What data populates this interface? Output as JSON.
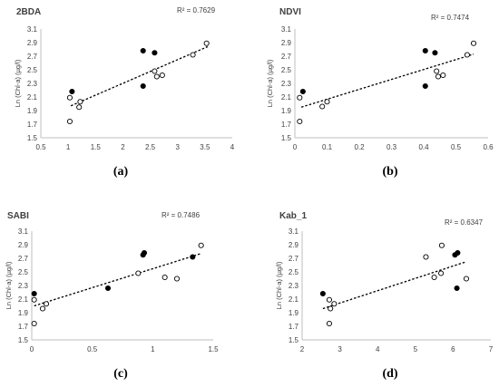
{
  "chart_data": [
    {
      "type": "scatter",
      "panel_label": "(a)",
      "title": "2BDA",
      "ylabel": "Ln (Chl-a) (µg/l)",
      "r2_label": "R² = 0.7629",
      "xlim": [
        0.5,
        4
      ],
      "ylim": [
        1.5,
        3.1
      ],
      "xticks": [
        0.5,
        1,
        1.5,
        2,
        2.5,
        3,
        3.5,
        4
      ],
      "xtick_labels": [
        "0.5",
        "1",
        "1.5",
        "2",
        "2.5",
        "3",
        "3.5",
        "4"
      ],
      "yticks": [
        1.5,
        1.7,
        1.9,
        2.1,
        2.3,
        2.5,
        2.7,
        2.9,
        3.1
      ],
      "ytick_labels": [
        "1.5",
        "1.7",
        "1.9",
        "2.1",
        "2.3",
        "2.5",
        "2.7",
        "2.9",
        "3.1"
      ],
      "trendline": {
        "x": [
          1.05,
          3.55
        ],
        "y": [
          1.97,
          2.84
        ]
      },
      "series": [
        {
          "marker": "filled",
          "points": [
            [
              1.07,
              2.18
            ],
            [
              2.37,
              2.78
            ],
            [
              2.58,
              2.75
            ],
            [
              2.37,
              2.26
            ]
          ]
        },
        {
          "marker": "open",
          "points": [
            [
              1.03,
              2.09
            ],
            [
              1.03,
              1.74
            ],
            [
              1.2,
              1.95
            ],
            [
              1.22,
              2.03
            ],
            [
              2.58,
              2.48
            ],
            [
              2.62,
              2.4
            ],
            [
              2.72,
              2.42
            ],
            [
              3.28,
              2.72
            ],
            [
              3.53,
              2.89
            ]
          ]
        }
      ]
    },
    {
      "type": "scatter",
      "panel_label": "(b)",
      "title": "NDVI",
      "ylabel": "Ln (Chl-a) (µg/l)",
      "r2_label": "R² = 0.7474",
      "xlim": [
        0,
        0.6
      ],
      "ylim": [
        1.5,
        3.1
      ],
      "xticks": [
        0,
        0.1,
        0.2,
        0.3,
        0.4,
        0.5,
        0.6
      ],
      "xtick_labels": [
        "0",
        "0.1",
        "0.2",
        "0.3",
        "0.4",
        "0.5",
        "0.6"
      ],
      "yticks": [
        1.5,
        1.7,
        1.9,
        2.1,
        2.3,
        2.5,
        2.7,
        2.9,
        3.1
      ],
      "ytick_labels": [
        "1.5",
        "1.7",
        "1.9",
        "2.1",
        "2.3",
        "2.5",
        "2.7",
        "2.9",
        "3.1"
      ],
      "trendline": {
        "x": [
          0.02,
          0.555
        ],
        "y": [
          1.95,
          2.73
        ]
      },
      "series": [
        {
          "marker": "filled",
          "points": [
            [
              0.025,
              2.18
            ],
            [
              0.405,
              2.78
            ],
            [
              0.435,
              2.75
            ],
            [
              0.405,
              2.26
            ]
          ]
        },
        {
          "marker": "open",
          "points": [
            [
              0.015,
              2.09
            ],
            [
              0.015,
              1.74
            ],
            [
              0.085,
              1.96
            ],
            [
              0.1,
              2.03
            ],
            [
              0.44,
              2.48
            ],
            [
              0.445,
              2.4
            ],
            [
              0.46,
              2.42
            ],
            [
              0.535,
              2.72
            ],
            [
              0.555,
              2.89
            ]
          ]
        }
      ]
    },
    {
      "type": "scatter",
      "panel_label": "(c)",
      "title": "SABI",
      "ylabel": "Ln (Chl-a) (µg/l)",
      "r2_label": "R² = 0.7486",
      "xlim": [
        0,
        1.5
      ],
      "ylim": [
        1.5,
        3.1
      ],
      "xticks": [
        0,
        0.5,
        1,
        1.5
      ],
      "xtick_labels": [
        "0",
        "0.5",
        "1",
        "1.5"
      ],
      "yticks": [
        1.5,
        1.7,
        1.9,
        2.1,
        2.3,
        2.5,
        2.7,
        2.9,
        3.1
      ],
      "ytick_labels": [
        "1.5",
        "1.7",
        "1.9",
        "2.1",
        "2.3",
        "2.5",
        "2.7",
        "2.9",
        "3.1"
      ],
      "trendline": {
        "x": [
          0.02,
          1.4
        ],
        "y": [
          2.0,
          2.77
        ]
      },
      "series": [
        {
          "marker": "filled",
          "points": [
            [
              0.02,
              2.18
            ],
            [
              0.92,
              2.75
            ],
            [
              0.93,
              2.78
            ],
            [
              0.63,
              2.26
            ],
            [
              1.33,
              2.72
            ]
          ]
        },
        {
          "marker": "open",
          "points": [
            [
              0.02,
              2.09
            ],
            [
              0.02,
              1.74
            ],
            [
              0.09,
              1.96
            ],
            [
              0.12,
              2.03
            ],
            [
              0.88,
              2.48
            ],
            [
              1.1,
              2.42
            ],
            [
              1.2,
              2.4
            ],
            [
              1.4,
              2.89
            ]
          ]
        }
      ]
    },
    {
      "type": "scatter",
      "panel_label": "(d)",
      "title": "Kab_1",
      "ylabel": "Ln (Chl-a) (µg/l)",
      "r2_label": "R² = 0.6347",
      "xlim": [
        2,
        7
      ],
      "ylim": [
        1.5,
        3.1
      ],
      "xticks": [
        2,
        3,
        4,
        5,
        6,
        7
      ],
      "xtick_labels": [
        "2",
        "3",
        "4",
        "5",
        "6",
        "7"
      ],
      "yticks": [
        1.5,
        1.7,
        1.9,
        2.1,
        2.3,
        2.5,
        2.7,
        2.9,
        3.1
      ],
      "ytick_labels": [
        "1.5",
        "1.7",
        "1.9",
        "2.1",
        "2.3",
        "2.5",
        "2.7",
        "2.9",
        "3.1"
      ],
      "trendline": {
        "x": [
          2.55,
          6.35
        ],
        "y": [
          1.96,
          2.65
        ]
      },
      "series": [
        {
          "marker": "filled",
          "points": [
            [
              2.55,
              2.18
            ],
            [
              6.05,
              2.75
            ],
            [
              6.12,
              2.78
            ],
            [
              6.1,
              2.26
            ]
          ]
        },
        {
          "marker": "open",
          "points": [
            [
              2.72,
              2.09
            ],
            [
              2.72,
              1.74
            ],
            [
              2.75,
              1.96
            ],
            [
              2.85,
              2.03
            ],
            [
              5.28,
              2.72
            ],
            [
              5.5,
              2.42
            ],
            [
              5.68,
              2.48
            ],
            [
              5.7,
              2.89
            ],
            [
              6.35,
              2.4
            ]
          ]
        }
      ]
    }
  ]
}
